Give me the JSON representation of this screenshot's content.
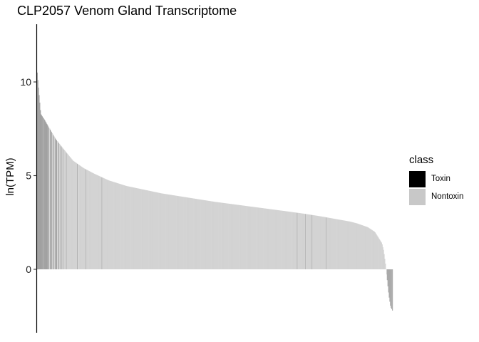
{
  "chart_data": {
    "type": "bar",
    "title": "CLP2057 Venom Gland Transcriptome",
    "ylabel": "ln(TPM)",
    "xlabel": "",
    "ylim": [
      -3.4,
      13.2
    ],
    "yticks": [
      0,
      5,
      10
    ],
    "legend": {
      "title": "class",
      "position": "right",
      "entries": [
        {
          "name": "Toxin",
          "color": "#000000"
        },
        {
          "name": "Nontoxin",
          "color": "#c8c8c8"
        }
      ]
    },
    "grid": false,
    "n_transcripts": 550,
    "sorted": "descending",
    "profile": {
      "rank_fraction": [
        0.0,
        0.01,
        0.02,
        0.035,
        0.05,
        0.07,
        0.1,
        0.13,
        0.16,
        0.2,
        0.25,
        0.3,
        0.35,
        0.4,
        0.5,
        0.6,
        0.7,
        0.75,
        0.8,
        0.85,
        0.88,
        0.9,
        0.93,
        0.95,
        0.96,
        0.97,
        0.975,
        0.98,
        0.985,
        0.99,
        0.995,
        1.0
      ],
      "ln_tpm": [
        10.5,
        8.3,
        8.0,
        7.5,
        7.0,
        6.5,
        5.8,
        5.4,
        5.1,
        4.75,
        4.45,
        4.25,
        4.05,
        3.9,
        3.6,
        3.35,
        3.1,
        2.97,
        2.82,
        2.65,
        2.55,
        2.45,
        2.25,
        2.0,
        1.7,
        1.4,
        1.0,
        0.3,
        -0.5,
        -1.4,
        -2.0,
        -2.2
      ]
    },
    "toxin_ranks": [
      0,
      1,
      2,
      3,
      4,
      5,
      6,
      7,
      8,
      9,
      10,
      11,
      12,
      13,
      14,
      15,
      16,
      18,
      20,
      22,
      25,
      28,
      30,
      33,
      37,
      40,
      45,
      62,
      75,
      100,
      402,
      415,
      425,
      447
    ]
  }
}
